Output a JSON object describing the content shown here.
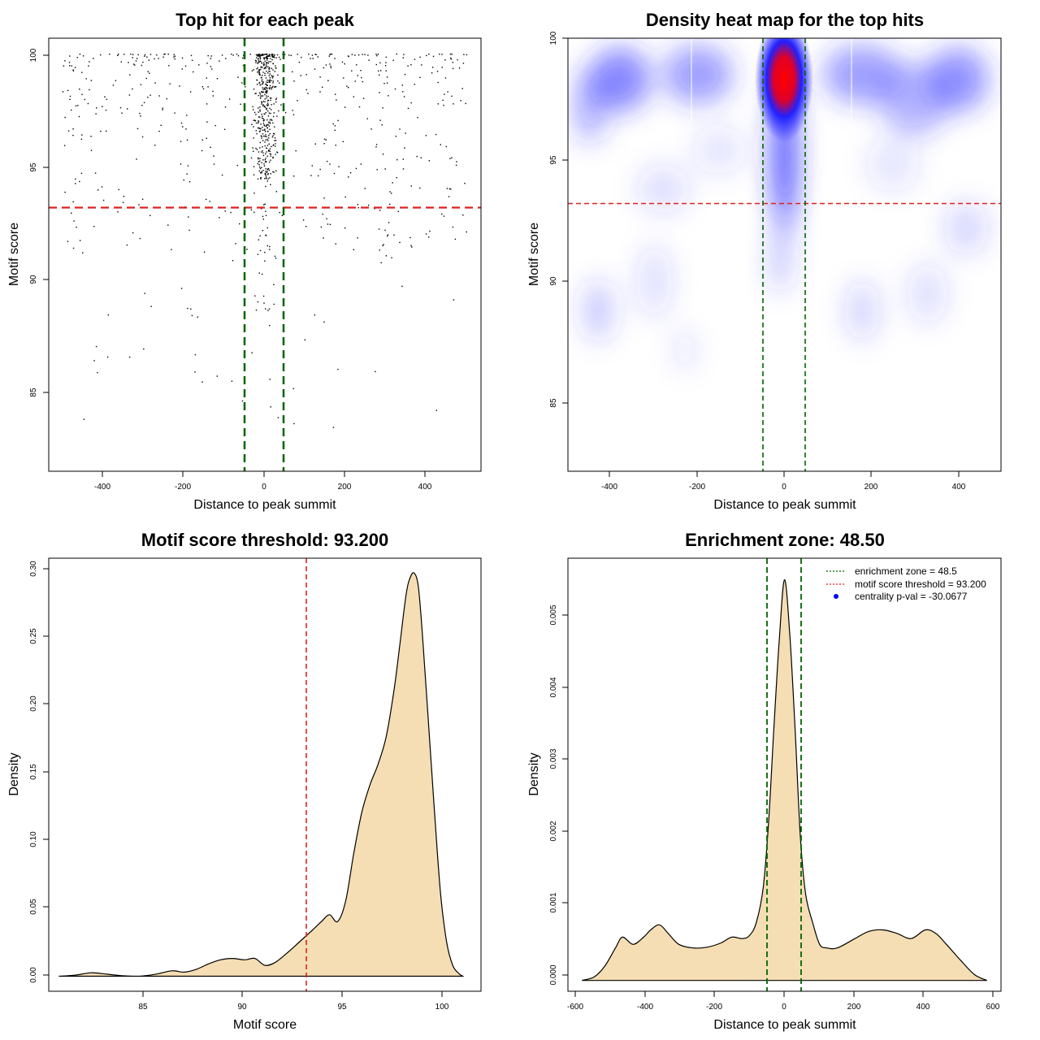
{
  "chart_data": [
    {
      "type": "scatter",
      "title": "Top hit for each peak",
      "xlabel": "Distance to peak summit",
      "ylabel": "Motif score",
      "xlim": [
        -535,
        535
      ],
      "ylim": [
        81.7,
        100.7
      ],
      "xticks": [
        -400,
        -200,
        0,
        200,
        400
      ],
      "yticks": [
        85,
        90,
        95,
        100
      ],
      "x_tick_labels": [
        "-400",
        "-200",
        "0",
        "200",
        "400"
      ],
      "y_tick_labels": [
        "85",
        "90",
        "95",
        "100"
      ],
      "point_count_approx": 1000,
      "x_range_of_points": [
        -500,
        500
      ],
      "hlines": [
        {
          "y": 93.2,
          "color": "#dd2222",
          "style": "dashed"
        }
      ],
      "vlines": [
        {
          "x": -48.5,
          "color": "#006400",
          "style": "dashed"
        },
        {
          "x": 48.5,
          "color": "#006400",
          "style": "dashed"
        }
      ],
      "grid": false
    },
    {
      "type": "heatmap",
      "title": "Density heat map for the top hits",
      "xlabel": "Distance to peak summit",
      "ylabel": "Motif score",
      "xlim": [
        -500,
        500
      ],
      "ylim": [
        82.2,
        100
      ],
      "xticks": [
        -400,
        -200,
        0,
        200,
        400
      ],
      "yticks": [
        85,
        90,
        95,
        100
      ],
      "x_tick_labels": [
        "-400",
        "-200",
        "0",
        "200",
        "400"
      ],
      "y_tick_labels": [
        "85",
        "90",
        "95",
        "100"
      ],
      "colors": {
        "low": "#ffffff",
        "mid": "#0000ff",
        "high": "#ff0000"
      },
      "density_peak": {
        "x": 0,
        "y": 98.3
      },
      "hlines": [
        {
          "y": 93.2,
          "color": "#dd2222",
          "style": "dashed"
        }
      ],
      "vlines": [
        {
          "x": -48.5,
          "color": "#006400",
          "style": "dashed"
        },
        {
          "x": 48.5,
          "color": "#006400",
          "style": "dashed"
        }
      ],
      "grid": false
    },
    {
      "type": "area",
      "title": "Motif score threshold: 93.200",
      "xlabel": "Motif score",
      "ylabel": "Density",
      "xlim": [
        80.5,
        101.9
      ],
      "ylim": [
        -0.011,
        0.306
      ],
      "xticks": [
        85,
        90,
        95,
        100
      ],
      "yticks": [
        0,
        0.05,
        0.1,
        0.15,
        0.2,
        0.25,
        0.3
      ],
      "x_tick_labels": [
        "85",
        "90",
        "95",
        "100"
      ],
      "y_tick_labels": [
        "0.00",
        "0.05",
        "0.10",
        "0.15",
        "0.20",
        "0.25",
        "0.30"
      ],
      "fill_color": "#f5deb3",
      "x": [
        81.0,
        81.8,
        82.6,
        83.4,
        84.2,
        85.0,
        85.8,
        86.6,
        87.2,
        87.8,
        88.4,
        89.0,
        89.6,
        90.2,
        90.7,
        91.2,
        91.7,
        92.3,
        92.9,
        93.5,
        94.0,
        94.4,
        94.8,
        95.2,
        95.6,
        96.0,
        96.4,
        96.8,
        97.2,
        97.6,
        97.9,
        98.2,
        98.4,
        98.6,
        98.8,
        99.0,
        99.3,
        99.6,
        99.9,
        100.2,
        100.5,
        100.8,
        101.0
      ],
      "y": [
        0.0,
        0.0008,
        0.0025,
        0.0015,
        0.0003,
        0.0,
        0.0015,
        0.004,
        0.003,
        0.005,
        0.009,
        0.012,
        0.013,
        0.012,
        0.013,
        0.008,
        0.01,
        0.017,
        0.025,
        0.033,
        0.04,
        0.045,
        0.04,
        0.055,
        0.09,
        0.12,
        0.14,
        0.155,
        0.175,
        0.21,
        0.245,
        0.28,
        0.292,
        0.295,
        0.285,
        0.25,
        0.185,
        0.12,
        0.06,
        0.025,
        0.008,
        0.002,
        0.0
      ],
      "vlines": [
        {
          "x": 93.2,
          "color": "#dd2222",
          "style": "dashed"
        }
      ],
      "grid": false
    },
    {
      "type": "area",
      "title": "Enrichment zone: 48.50",
      "xlabel": "Distance to peak summit",
      "ylabel": "Density",
      "xlim": [
        -615,
        615
      ],
      "ylim": [
        -0.00015,
        0.00585
      ],
      "xticks": [
        -600,
        -400,
        -200,
        0,
        200,
        400,
        600
      ],
      "yticks": [
        0,
        0.001,
        0.002,
        0.003,
        0.004,
        0.005
      ],
      "x_tick_labels": [
        "-600",
        "-400",
        "-200",
        "0",
        "200",
        "400",
        "600"
      ],
      "y_tick_labels": [
        "0.000",
        "0.001",
        "0.002",
        "0.003",
        "0.004",
        "0.005"
      ],
      "fill_color": "#f5deb3",
      "x": [
        -575,
        -540,
        -510,
        -480,
        -460,
        -430,
        -400,
        -380,
        -355,
        -330,
        -300,
        -260,
        -220,
        -180,
        -150,
        -120,
        -100,
        -80,
        -60,
        -45,
        -30,
        -15,
        0,
        15,
        30,
        45,
        60,
        80,
        100,
        120,
        150,
        200,
        240,
        280,
        320,
        360,
        400,
        430,
        460,
        500,
        540,
        575
      ],
      "y": [
        0.0,
        5e-05,
        0.0002,
        0.00045,
        0.0006,
        0.0005,
        0.0006,
        0.0007,
        0.00077,
        0.00065,
        0.0005,
        0.00045,
        0.00046,
        0.00052,
        0.0006,
        0.00058,
        0.00062,
        0.0008,
        0.0013,
        0.0022,
        0.0035,
        0.0047,
        0.00555,
        0.0048,
        0.0035,
        0.002,
        0.0012,
        0.0008,
        0.0005,
        0.00045,
        0.00045,
        0.00058,
        0.00068,
        0.0007,
        0.00065,
        0.00058,
        0.0007,
        0.00065,
        0.0005,
        0.00028,
        8e-05,
        0.0
      ],
      "vlines": [
        {
          "x": -48.5,
          "color": "#006400",
          "style": "dashed"
        },
        {
          "x": 48.5,
          "color": "#006400",
          "style": "dashed"
        }
      ],
      "legend": [
        {
          "label": "enrichment zone = 48.5",
          "color": "#006400",
          "symbol": "dotted-line"
        },
        {
          "label": "motif score threshold = 93.200",
          "color": "#dd2222",
          "symbol": "dotted-line"
        },
        {
          "label": "centrality p-val = -30.0677",
          "color": "#0000ff",
          "symbol": "dot"
        }
      ],
      "legend_position": "top-right",
      "grid": false
    }
  ]
}
